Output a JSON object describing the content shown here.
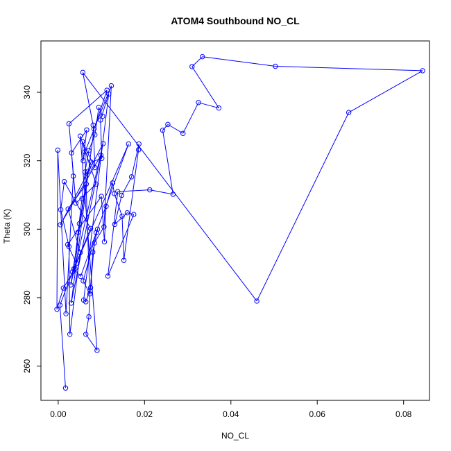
{
  "chart_data": {
    "type": "line",
    "title": "ATOM4 Southbound NO_CL",
    "xlabel": "NO_CL",
    "ylabel": "Theta (K)",
    "xlim": [
      -0.004,
      0.086
    ],
    "ylim": [
      250,
      355
    ],
    "x_ticks": [
      0.0,
      0.02,
      0.04,
      0.06,
      0.08
    ],
    "x_tick_labels": [
      "0.00",
      "0.02",
      "0.04",
      "0.06",
      "0.08"
    ],
    "y_ticks": [
      260,
      280,
      300,
      320,
      340
    ],
    "y_tick_labels": [
      "260",
      "280",
      "300",
      "320",
      "340"
    ],
    "grid": false,
    "legend": "none",
    "series": [
      {
        "line_color": "#0000ff",
        "marker": "open-circle",
        "points": [
          [
            0.0017,
            253.6
          ],
          [
            0.0004,
            277.8
          ],
          [
            0.0033,
            287.5
          ],
          [
            0.0075,
            300.2
          ],
          [
            0.0014,
            313.9
          ],
          [
            0.0006,
            305.7
          ],
          [
            0.0025,
            294.9
          ],
          [
            0.0027,
            269.3
          ],
          [
            0.0051,
            293.2
          ],
          [
            0.0023,
            305.9
          ],
          [
            0.0065,
            313.2
          ],
          [
            0.0029,
            283.7
          ],
          [
            0.0104,
            325.0
          ],
          [
            0.0005,
            301.3
          ],
          [
            0.0099,
            321.6
          ],
          [
            0.003,
            278.4
          ],
          [
            0.0083,
            329.3
          ],
          [
            0.0113,
            340.6
          ],
          [
            0.0025,
            330.8
          ],
          [
            0.0041,
            307.6
          ],
          [
            0.0088,
            313.2
          ],
          [
            0.0051,
            327.2
          ],
          [
            0.009,
            264.6
          ],
          [
            0.0064,
            269.3
          ],
          [
            0.0071,
            274.4
          ],
          [
            0.0074,
            282.0
          ],
          [
            0.0084,
            296.0
          ],
          [
            0.0106,
            300.7
          ],
          [
            0.0123,
            341.9
          ],
          [
            0.0062,
            322.6
          ],
          [
            0.0073,
            281.1
          ],
          [
            0.0058,
            284.9
          ],
          [
            0.0088,
            299.0
          ],
          [
            0.0163,
            324.9
          ],
          [
            0.0042,
            290.0
          ],
          [
            0.0022,
            295.5
          ],
          [
            0.01,
            309.6
          ],
          [
            0.0107,
            296.3
          ],
          [
            0.0111,
            306.7
          ],
          [
            0.0126,
            313.5
          ],
          [
            0.013,
            310.4
          ],
          [
            0.0148,
            303.8
          ],
          [
            0.0152,
            290.9
          ],
          [
            0.0186,
            323.2
          ],
          [
            0.0187,
            324.9
          ],
          [
            0.017,
            315.3
          ],
          [
            0.0147,
            309.9
          ],
          [
            0.0131,
            301.4
          ],
          [
            0.016,
            304.8
          ],
          [
            0.0175,
            304.3
          ],
          [
            0.0115,
            286.3
          ],
          [
            0.0138,
            311.0
          ],
          [
            0.0212,
            311.5
          ],
          [
            0.0266,
            310.2
          ],
          [
            0.0242,
            328.9
          ],
          [
            0.0254,
            330.6
          ],
          [
            0.0289,
            328.0
          ],
          [
            0.0325,
            337.0
          ],
          [
            0.0372,
            335.4
          ],
          [
            0.031,
            347.5
          ],
          [
            0.0334,
            350.4
          ],
          [
            0.0503,
            347.6
          ],
          [
            0.0844,
            346.3
          ],
          [
            0.0673,
            334.1
          ],
          [
            0.046,
            279.0
          ],
          [
            0.0057,
            345.8
          ],
          [
            0.0081,
            330.4
          ],
          [
            0.0085,
            318.0
          ],
          [
            0.0056,
            325.6
          ],
          [
            0.0058,
            320.0
          ],
          [
            0.0066,
            329.0
          ],
          [
            0.0031,
            322.3
          ],
          [
            0.0035,
            315.5
          ],
          [
            0.0018,
            275.3
          ],
          [
            -0.0001,
            323.1
          ],
          [
            -0.0003,
            276.6
          ],
          [
            0.0012,
            282.8
          ],
          [
            0.0039,
            288.5
          ],
          [
            0.0049,
            301.6
          ],
          [
            0.0069,
            316.9
          ],
          [
            0.0076,
            319.6
          ],
          [
            0.0101,
            320.7
          ],
          [
            0.0098,
            331.9
          ],
          [
            0.0117,
            339.5
          ],
          [
            0.0059,
            279.3
          ],
          [
            0.0064,
            278.8
          ],
          [
            0.0075,
            282.9
          ],
          [
            0.008,
            293.3
          ],
          [
            0.0091,
            300.0
          ],
          [
            0.0052,
            286.2
          ],
          [
            0.0036,
            288.4
          ],
          [
            0.0046,
            299.1
          ],
          [
            0.0055,
            308.9
          ],
          [
            0.0062,
            316.7
          ],
          [
            0.0071,
            323.0
          ],
          [
            0.0085,
            327.6
          ],
          [
            0.0094,
            335.6
          ],
          [
            0.0103,
            333.0
          ]
        ]
      }
    ]
  }
}
